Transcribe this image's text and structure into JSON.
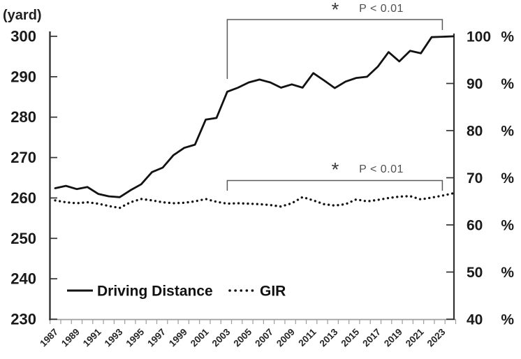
{
  "figure": {
    "left_axis_title": "(yard)",
    "legend": {
      "items": [
        {
          "label": "Driving Distance",
          "line_style": "solid"
        },
        {
          "label": "GIR",
          "line_style": "dotted"
        }
      ]
    }
  },
  "chart_data": {
    "type": "line",
    "title": "",
    "x_years": [
      1987,
      1988,
      1989,
      1990,
      1991,
      1992,
      1993,
      1994,
      1995,
      1996,
      1997,
      1998,
      1999,
      2000,
      2001,
      2002,
      2003,
      2004,
      2005,
      2006,
      2007,
      2008,
      2009,
      2010,
      2011,
      2012,
      2013,
      2014,
      2015,
      2016,
      2017,
      2018,
      2019,
      2020,
      2021,
      2022,
      2023,
      2024
    ],
    "x_tick_labels": [
      "1987",
      "1989",
      "1991",
      "1993",
      "1995",
      "1997",
      "1999",
      "2001",
      "2003",
      "2005",
      "2007",
      "2009",
      "2011",
      "2013",
      "2015",
      "2017",
      "2019",
      "2021",
      "2023"
    ],
    "left_axis": {
      "title": "(yard)",
      "min": 230,
      "max": 300,
      "step": 10,
      "ticks": [
        230,
        240,
        250,
        260,
        270,
        280,
        290,
        300
      ]
    },
    "right_axis": {
      "unit": "%",
      "min": 40,
      "max": 100,
      "step": 10,
      "ticks": [
        40,
        50,
        60,
        70,
        80,
        90,
        100
      ]
    },
    "grid": false,
    "legend_position": "inside-bottom-left",
    "series": [
      {
        "name": "Driving Distance",
        "axis": "left",
        "line_style": "solid",
        "color": "#121212",
        "values": [
          262.4,
          263.0,
          262.2,
          262.7,
          261.0,
          260.4,
          260.2,
          261.9,
          263.4,
          266.4,
          267.5,
          270.6,
          272.4,
          273.2,
          279.4,
          279.8,
          286.3,
          287.3,
          288.6,
          289.3,
          288.6,
          287.3,
          288.1,
          287.3,
          290.9,
          289.1,
          287.2,
          288.8,
          289.7,
          290.0,
          292.5,
          296.1,
          293.8,
          296.4,
          295.8,
          299.8,
          299.9,
          300.0
        ]
      },
      {
        "name": "GIR",
        "axis": "right",
        "line_style": "dotted",
        "color": "#121212",
        "values": [
          65.2,
          64.8,
          64.6,
          64.8,
          64.5,
          64.0,
          63.6,
          64.8,
          65.5,
          65.2,
          64.8,
          64.6,
          64.7,
          65.0,
          65.5,
          64.9,
          64.5,
          64.6,
          64.5,
          64.4,
          64.2,
          63.9,
          64.6,
          65.9,
          65.2,
          64.4,
          64.1,
          64.4,
          65.4,
          65.0,
          65.3,
          65.7,
          66.0,
          66.1,
          65.4,
          65.8,
          66.2,
          66.7
        ]
      }
    ],
    "annotations": [
      {
        "target": "Driving Distance",
        "marker": "*",
        "text": "P < 0.01",
        "span_years": [
          2003,
          2023
        ]
      },
      {
        "target": "GIR",
        "marker": "*",
        "text": "P < 0.01",
        "span_years": [
          2003,
          2023
        ]
      }
    ]
  }
}
